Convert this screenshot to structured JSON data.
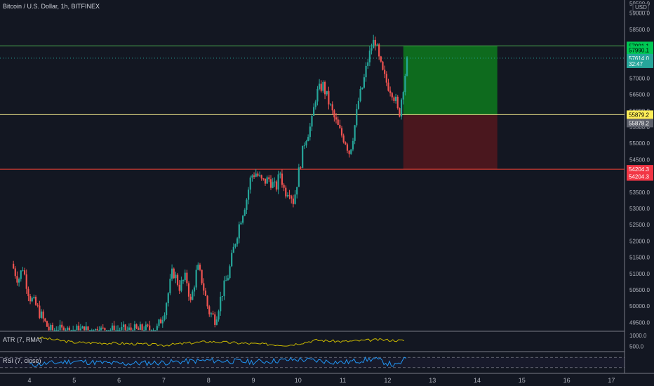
{
  "header": {
    "title": "Bitcoin / U.S. Dollar, 1h, BITFINEX",
    "currency": "USD"
  },
  "indicators": {
    "atr_label": "ATR (7, RMA)",
    "rsi_label": "RSI (7, close)"
  },
  "colors": {
    "background": "#131722",
    "up": "#26a69a",
    "down": "#ef5350",
    "target_line": "#4caf50",
    "entry_line": "#f0e68c",
    "stop_line": "#f44336",
    "profit_zone": "#0e6b1e",
    "loss_zone": "#4a171e",
    "atr_line": "#c9b800",
    "rsi_line": "#2196f3"
  },
  "chart_data": {
    "type": "candlestick",
    "symbol": "BTC/USD",
    "exchange": "BITFINEX",
    "interval": "1h",
    "y_axis": {
      "ticks": [
        49500,
        50000,
        50500,
        51000,
        51500,
        52000,
        52500,
        53000,
        53500,
        54000,
        54500,
        55000,
        55500,
        56000,
        56500,
        57000,
        57500,
        58000,
        58500,
        59000
      ],
      "tick_labels": [
        "49500.0",
        "50000.0",
        "50500.0",
        "51000.0",
        "51500.0",
        "52000.0",
        "52500.0",
        "53000.0",
        "53500.0",
        "54000.0",
        "54500.0",
        "55000.0",
        "55500.0",
        "56000.0",
        "56500.0",
        "57000.0",
        "57500.0",
        "58000.0",
        "58500.0",
        "59000.0"
      ],
      "top_label": "59500.0",
      "range": [
        49250,
        59400
      ]
    },
    "x_axis": {
      "ticks": [
        4,
        5,
        6,
        7,
        8,
        9,
        10,
        11,
        12,
        13,
        14,
        15,
        16,
        17
      ],
      "tick_labels": [
        "4",
        "5",
        "6",
        "7",
        "8",
        "9",
        "10",
        "11",
        "12",
        "13",
        "14",
        "15",
        "16",
        "17"
      ]
    },
    "price_path": [
      [
        3.6,
        51300
      ],
      [
        3.75,
        50800
      ],
      [
        3.85,
        51200
      ],
      [
        4.0,
        50300
      ],
      [
        4.15,
        50000
      ],
      [
        4.3,
        49600
      ],
      [
        4.45,
        49250
      ],
      [
        5.5,
        49250
      ],
      [
        6.3,
        49250
      ],
      [
        6.85,
        49300
      ],
      [
        7.0,
        49800
      ],
      [
        7.1,
        50400
      ],
      [
        7.2,
        51100
      ],
      [
        7.35,
        50600
      ],
      [
        7.5,
        50900
      ],
      [
        7.6,
        50100
      ],
      [
        7.75,
        51200
      ],
      [
        7.85,
        50800
      ],
      [
        8.0,
        49850
      ],
      [
        8.15,
        49600
      ],
      [
        8.3,
        50400
      ],
      [
        8.45,
        51000
      ],
      [
        8.55,
        51700
      ],
      [
        8.7,
        52600
      ],
      [
        8.85,
        53300
      ],
      [
        8.95,
        54000
      ],
      [
        9.05,
        54100
      ],
      [
        9.2,
        53800
      ],
      [
        9.35,
        53900
      ],
      [
        9.5,
        53600
      ],
      [
        9.6,
        54100
      ],
      [
        9.7,
        53500
      ],
      [
        9.8,
        53600
      ],
      [
        9.9,
        53200
      ],
      [
        10.0,
        54000
      ],
      [
        10.15,
        55100
      ],
      [
        10.3,
        55600
      ],
      [
        10.4,
        56500
      ],
      [
        10.55,
        56800
      ],
      [
        10.7,
        56200
      ],
      [
        10.8,
        55800
      ],
      [
        10.95,
        55300
      ],
      [
        11.05,
        55100
      ],
      [
        11.15,
        54700
      ],
      [
        11.25,
        55400
      ],
      [
        11.35,
        56300
      ],
      [
        11.45,
        56800
      ],
      [
        11.55,
        57500
      ],
      [
        11.65,
        58000
      ],
      [
        11.72,
        58200
      ],
      [
        11.8,
        57600
      ],
      [
        11.9,
        57100
      ],
      [
        12.0,
        56800
      ],
      [
        12.1,
        56600
      ],
      [
        12.18,
        56300
      ],
      [
        12.25,
        55800
      ],
      [
        12.32,
        56500
      ],
      [
        12.4,
        57200
      ],
      [
        12.45,
        57650
      ]
    ],
    "position": {
      "type": "long",
      "entry": 55879.2,
      "target": 57991.1,
      "stop": 54204.3,
      "start_x": 12.35,
      "end_x": 14.45
    },
    "price_tags": [
      {
        "label": "57991.1",
        "price": 57991.1,
        "color": "#00c853",
        "text_color": "#000000"
      },
      {
        "label": "57990.1",
        "price": 57860,
        "color": "#00c853",
        "text_color": "#000000"
      },
      {
        "label": "57614.0",
        "price": 57614.0,
        "color": "#26a69a",
        "text_color": "#ffffff"
      },
      {
        "label": "32:47",
        "price": 57440,
        "color": "#26a69a",
        "text_color": "#ffffff"
      },
      {
        "label": "55879.2",
        "price": 55879.2,
        "color": "#ffee58",
        "text_color": "#000000"
      },
      {
        "label": "55878.2",
        "price": 55620,
        "color": "#5d606b",
        "text_color": "#ffffff"
      },
      {
        "label": "54204.3",
        "price": 54204.3,
        "color": "#f23645",
        "text_color": "#ffffff"
      },
      {
        "label": "54204.3",
        "price": 53980,
        "color": "#f23645",
        "text_color": "#ffffff"
      }
    ],
    "atr": {
      "ticks": [
        500,
        1000
      ],
      "tick_labels": [
        "500.0",
        "1000.0"
      ],
      "range": [
        300,
        1150
      ],
      "path": [
        [
          4.2,
          900
        ],
        [
          5.0,
          680
        ],
        [
          6.0,
          640
        ],
        [
          7.0,
          560
        ],
        [
          8.0,
          720
        ],
        [
          9.0,
          620
        ],
        [
          9.8,
          560
        ],
        [
          10.4,
          780
        ],
        [
          11.0,
          720
        ],
        [
          11.8,
          800
        ],
        [
          12.4,
          760
        ]
      ]
    },
    "rsi": {
      "levels": [
        30,
        70
      ],
      "range": [
        10,
        90
      ],
      "path": [
        [
          4.0,
          40
        ],
        [
          5.0,
          55
        ],
        [
          6.0,
          45
        ],
        [
          7.0,
          50
        ],
        [
          8.0,
          58
        ],
        [
          9.0,
          52
        ],
        [
          10.0,
          62
        ],
        [
          11.0,
          50
        ],
        [
          11.7,
          64
        ],
        [
          12.2,
          36
        ],
        [
          12.45,
          70
        ]
      ]
    }
  }
}
